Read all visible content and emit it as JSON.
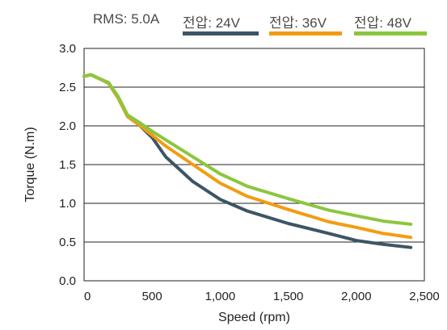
{
  "legend": {
    "heading": "RMS: 5.0A",
    "items": [
      {
        "label": "전압: 24V",
        "color": "#3d5566"
      },
      {
        "label": "전압: 36V",
        "color": "#f39c12"
      },
      {
        "label": "전압: 48V",
        "color": "#8cc63f"
      }
    ]
  },
  "chart_data": {
    "type": "line",
    "xlabel": "Speed (rpm)",
    "ylabel": "Torque (N.m)",
    "xlim": [
      0,
      2500
    ],
    "ylim": [
      0,
      3.0
    ],
    "x_ticks": [
      "0",
      "500",
      "1,000",
      "1,500",
      "2,000",
      "2,500"
    ],
    "y_ticks": [
      "0.0",
      "0.5",
      "1.0",
      "1.5",
      "2.0",
      "2.5",
      "3.0"
    ],
    "grid": "horizontal",
    "legend_position": "top",
    "series": [
      {
        "name": "전압: 24V",
        "color": "#3d5566",
        "x": [
          0,
          50,
          100,
          180,
          250,
          320,
          400,
          500,
          600,
          800,
          1000,
          1200,
          1500,
          1800,
          2000,
          2200,
          2400
        ],
        "y": [
          2.64,
          2.66,
          2.62,
          2.55,
          2.36,
          2.12,
          2.02,
          1.85,
          1.6,
          1.28,
          1.05,
          0.9,
          0.74,
          0.61,
          0.52,
          0.47,
          0.43
        ]
      },
      {
        "name": "전압: 36V",
        "color": "#f39c12",
        "x": [
          0,
          50,
          100,
          180,
          250,
          320,
          400,
          500,
          600,
          800,
          1000,
          1200,
          1500,
          1800,
          2000,
          2200,
          2400
        ],
        "y": [
          2.64,
          2.66,
          2.62,
          2.55,
          2.36,
          2.12,
          2.02,
          1.88,
          1.74,
          1.5,
          1.26,
          1.09,
          0.92,
          0.76,
          0.69,
          0.61,
          0.56
        ]
      },
      {
        "name": "전압: 48V",
        "color": "#8cc63f",
        "x": [
          0,
          50,
          100,
          180,
          250,
          320,
          400,
          500,
          600,
          800,
          1000,
          1200,
          1500,
          1800,
          2000,
          2200,
          2400
        ],
        "y": [
          2.64,
          2.66,
          2.62,
          2.56,
          2.38,
          2.14,
          2.05,
          1.93,
          1.82,
          1.6,
          1.38,
          1.22,
          1.06,
          0.91,
          0.84,
          0.77,
          0.73
        ]
      }
    ]
  }
}
